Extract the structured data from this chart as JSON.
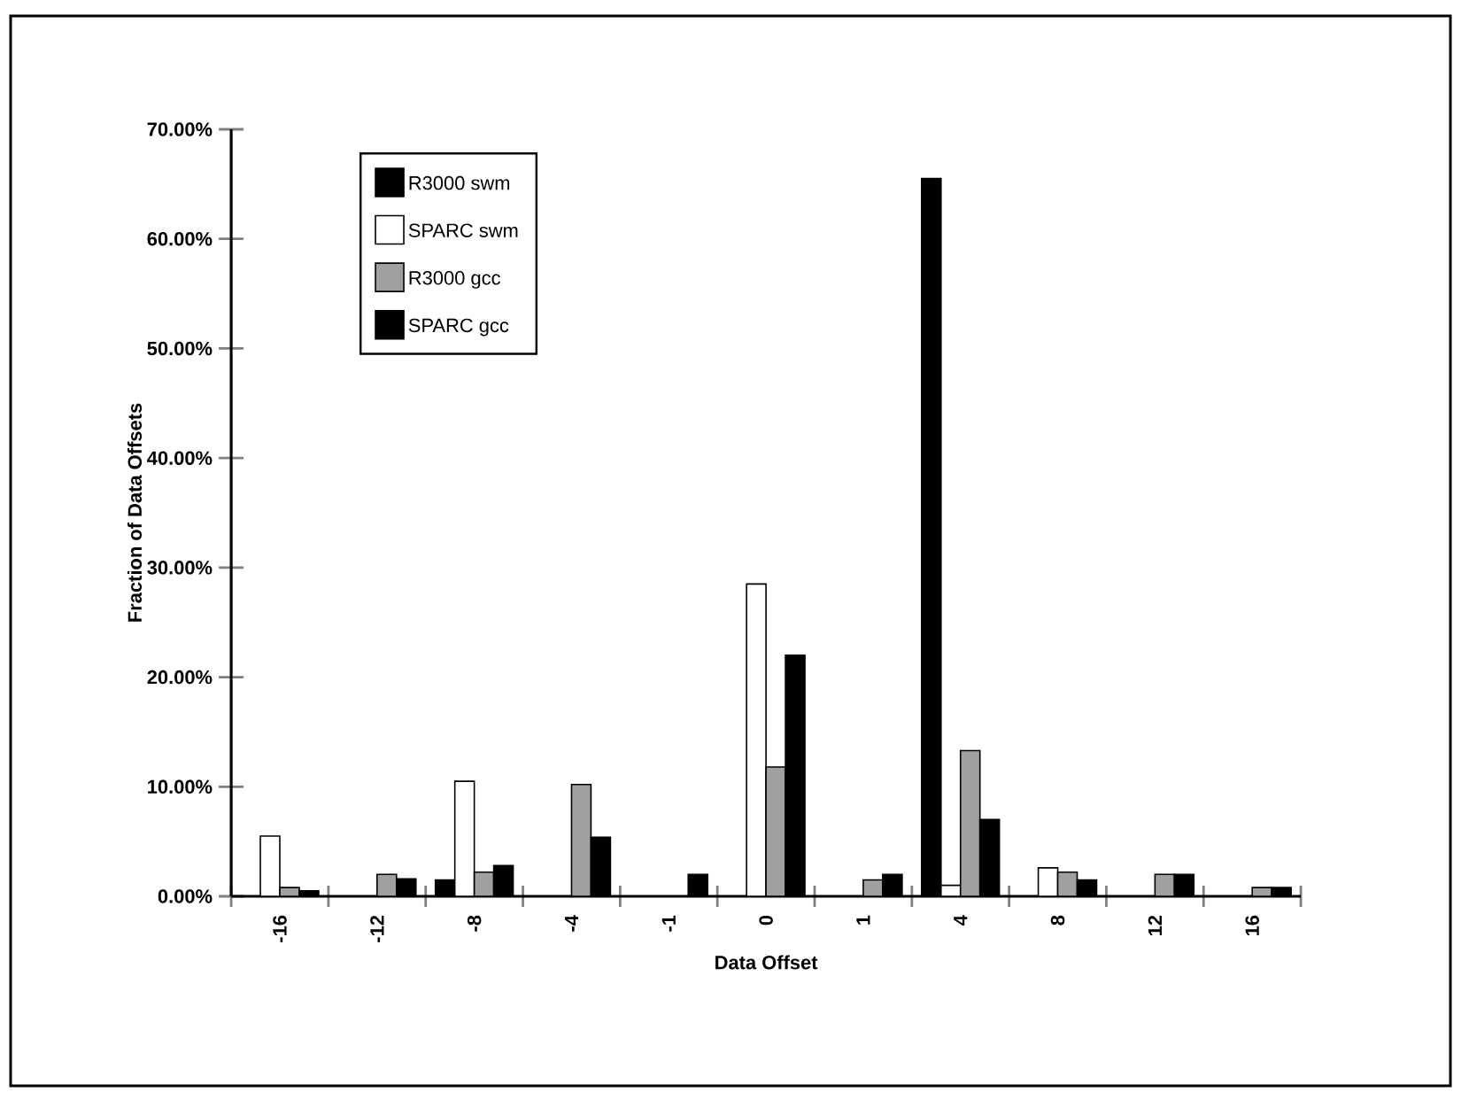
{
  "chart_data": {
    "type": "bar",
    "xlabel": "Data Offset",
    "ylabel": "Fraction of Data Offsets",
    "categories": [
      "-16",
      "-12",
      "-8",
      "-4",
      "-1",
      "0",
      "1",
      "4",
      "8",
      "12",
      "16"
    ],
    "series": [
      {
        "name": "R3000  swm",
        "color": "#000000",
        "values": [
          null,
          null,
          1.5,
          null,
          null,
          null,
          null,
          65.5,
          null,
          null,
          null
        ]
      },
      {
        "name": "SPARC swm",
        "color": "#ffffff",
        "values": [
          5.5,
          null,
          10.5,
          null,
          null,
          28.5,
          null,
          1.0,
          2.6,
          null,
          null
        ]
      },
      {
        "name": "R3000  gcc",
        "color": "#a0a0a0",
        "values": [
          0.8,
          2.0,
          2.2,
          10.2,
          null,
          11.8,
          1.5,
          13.3,
          2.2,
          2.0,
          0.8
        ]
      },
      {
        "name": "SPARC gcc",
        "color": "#000000",
        "values": [
          0.5,
          1.6,
          2.8,
          5.4,
          2.0,
          22.0,
          2.0,
          7.0,
          1.5,
          2.0,
          0.8
        ]
      }
    ],
    "ylim": [
      0,
      70
    ],
    "yticks": [
      {
        "value": 0,
        "label": "0.00%"
      },
      {
        "value": 10,
        "label": "10.00%"
      },
      {
        "value": 20,
        "label": "20.00%"
      },
      {
        "value": 30,
        "label": "30.00%"
      },
      {
        "value": 40,
        "label": "40.00%"
      },
      {
        "value": 50,
        "label": "50.00%"
      },
      {
        "value": 60,
        "label": "60.00%"
      },
      {
        "value": 70,
        "label": "70.00%"
      }
    ],
    "grid": false,
    "legend": "top left"
  }
}
